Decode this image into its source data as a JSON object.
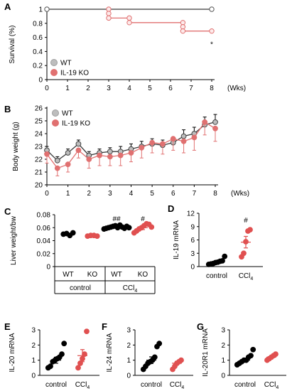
{
  "colors": {
    "wt": "#ffffff",
    "wt_stroke": "#555555",
    "ko": "#e07070",
    "black": "#000000",
    "red": "#e05050",
    "grey": "#bdbdbd"
  },
  "chart_data": [
    {
      "panel": "A",
      "type": "line",
      "xlabel": "(Wks)",
      "ylabel": "Survival (%)",
      "xlim": [
        0,
        8
      ],
      "ylim": [
        0,
        1
      ],
      "xticks": [
        "0",
        "1",
        "2",
        "3",
        "4",
        "5",
        "6",
        "7",
        "8"
      ],
      "yticks": [
        "0",
        "0.2",
        "0.4",
        "0.6",
        "0.8",
        "1"
      ],
      "legend": [
        "WT",
        "IL-19 KO"
      ],
      "annotation": "*",
      "series": [
        {
          "name": "WT",
          "step": true,
          "points": [
            [
              0,
              1
            ],
            [
              8,
              1
            ]
          ]
        },
        {
          "name": "IL-19 KO",
          "step": true,
          "points": [
            [
              3,
              1
            ],
            [
              3,
              0.94
            ],
            [
              3,
              0.875
            ],
            [
              4,
              0.875
            ],
            [
              4,
              0.81
            ],
            [
              6.6,
              0.81
            ],
            [
              6.6,
              0.75
            ],
            [
              6.6,
              0.69
            ],
            [
              8,
              0.69
            ]
          ]
        }
      ]
    },
    {
      "panel": "B",
      "type": "line",
      "xlabel": "(Wks)",
      "ylabel": "Body weight (g)",
      "xlim": [
        0,
        8
      ],
      "ylim": [
        20,
        26
      ],
      "xticks": [
        "0",
        "1",
        "2",
        "3",
        "4",
        "5",
        "6",
        "7",
        "8"
      ],
      "yticks": [
        "20",
        "21",
        "22",
        "23",
        "24",
        "25",
        "26"
      ],
      "legend": [
        "WT",
        "IL-19 KO"
      ],
      "x": [
        0,
        0.5,
        1,
        1.5,
        2,
        2.5,
        3,
        3.5,
        4,
        4.5,
        5,
        5.5,
        6,
        6.5,
        7,
        7.5,
        8
      ],
      "series": [
        {
          "name": "WT",
          "values": [
            22.7,
            21.9,
            22.5,
            23.2,
            22.3,
            22.5,
            22.6,
            22.6,
            22.8,
            23.0,
            23.2,
            23.1,
            23.3,
            23.8,
            24.0,
            24.7,
            24.9
          ],
          "err": [
            0.3,
            0.3,
            0.3,
            0.3,
            0.3,
            0.3,
            0.3,
            0.4,
            0.4,
            0.4,
            0.4,
            0.4,
            0.4,
            0.5,
            0.5,
            0.6,
            0.6
          ]
        },
        {
          "name": "IL-19 KO",
          "values": [
            22.4,
            21.3,
            21.6,
            22.7,
            22.0,
            22.3,
            22.2,
            22.3,
            22.5,
            22.9,
            23.3,
            23.2,
            23.6,
            23.4,
            23.7,
            24.9,
            24.4
          ],
          "err": [
            0.7,
            0.6,
            0.6,
            0.6,
            0.7,
            0.8,
            0.7,
            0.8,
            0.7,
            0.8,
            0.8,
            0.8,
            0.9,
            0.9,
            1.0,
            1.0,
            1.0
          ]
        }
      ]
    },
    {
      "panel": "C",
      "type": "scatter",
      "ylabel": "Liver weight/bw",
      "ylim": [
        0,
        0.08
      ],
      "yticks": [
        "0",
        "0.02",
        "0.04",
        "0.06",
        "0.08"
      ],
      "groups": [
        {
          "label": "WT",
          "treatment": "control",
          "color": "black",
          "values": [
            0.05,
            0.051,
            0.048,
            0.052
          ]
        },
        {
          "label": "KO",
          "treatment": "control",
          "color": "red",
          "values": [
            0.047,
            0.048,
            0.048,
            0.047
          ]
        },
        {
          "label": "WT",
          "treatment": "CCl4",
          "color": "black",
          "values": [
            0.058,
            0.059,
            0.06,
            0.061,
            0.062,
            0.063,
            0.06,
            0.064,
            0.061,
            0.059,
            0.062,
            0.06
          ],
          "mean": 0.061,
          "err": 0.002,
          "annotation": "##"
        },
        {
          "label": "KO",
          "treatment": "CCl4",
          "color": "red",
          "values": [
            0.052,
            0.055,
            0.058,
            0.06,
            0.063,
            0.066,
            0.065,
            0.061
          ],
          "mean": 0.06,
          "err": 0.003,
          "annotation": "#"
        }
      ],
      "category_labels": [
        "control",
        "CCl₄"
      ]
    },
    {
      "panel": "D",
      "type": "scatter",
      "ylabel": "IL-19 mRNA",
      "ylim": [
        0,
        12
      ],
      "yticks": [
        "0",
        "3",
        "6",
        "9",
        "12"
      ],
      "categories": [
        "control",
        "CCl₄"
      ],
      "groups": [
        {
          "name": "control",
          "color": "black",
          "values": [
            0.5,
            0.6,
            0.7,
            0.9,
            1.0,
            1.2,
            1.3,
            2.3
          ],
          "mean": 1.0,
          "err": 0.3
        },
        {
          "name": "CCl₄",
          "color": "red",
          "values": [
            2.2,
            3.0,
            5.6,
            8.0,
            8.3
          ],
          "mean": 5.5,
          "err": 1.3,
          "annotation": "#"
        }
      ]
    },
    {
      "panel": "E",
      "type": "scatter",
      "ylabel": "IL-20 mRNA",
      "ylim": [
        0,
        3
      ],
      "yticks": [
        "0",
        "1",
        "2",
        "3"
      ],
      "categories": [
        "control",
        "CCl₄"
      ],
      "groups": [
        {
          "name": "control",
          "color": "black",
          "values": [
            0.5,
            0.6,
            0.9,
            1.0,
            1.1,
            1.2,
            1.4,
            2.1
          ],
          "mean": 1.0,
          "err": 0.2
        },
        {
          "name": "CCl₄",
          "color": "red",
          "values": [
            0.5,
            0.8,
            1.1,
            1.4,
            2.9
          ],
          "mean": 1.3,
          "err": 0.4
        }
      ]
    },
    {
      "panel": "F",
      "type": "scatter",
      "ylabel": "IL-24 mRNA",
      "ylim": [
        0,
        3
      ],
      "yticks": [
        "0",
        "1",
        "2",
        "3"
      ],
      "categories": [
        "control",
        "CCl₄"
      ],
      "groups": [
        {
          "name": "control",
          "color": "black",
          "values": [
            0.4,
            0.6,
            0.8,
            0.9,
            1.0,
            1.2,
            1.9,
            2.1
          ],
          "mean": 1.0,
          "err": 0.22
        },
        {
          "name": "CCl₄",
          "color": "red",
          "values": [
            0.4,
            0.6,
            0.8,
            0.9,
            1.0
          ],
          "mean": 0.8,
          "err": 0.12
        }
      ]
    },
    {
      "panel": "G",
      "type": "scatter",
      "ylabel": "IL-20R1 mRNA",
      "ylim": [
        0,
        3
      ],
      "yticks": [
        "0",
        "1",
        "2",
        "3"
      ],
      "categories": [
        "control",
        "CCl₄"
      ],
      "groups": [
        {
          "name": "control",
          "color": "black",
          "values": [
            0.7,
            0.8,
            0.9,
            1.0,
            1.0,
            1.2,
            1.3,
            1.7
          ],
          "mean": 1.0,
          "err": 0.1
        },
        {
          "name": "CCl₄",
          "color": "red",
          "values": [
            1.0,
            1.1,
            1.2,
            1.3,
            1.4
          ],
          "mean": 1.2,
          "err": 0.1
        }
      ]
    }
  ]
}
